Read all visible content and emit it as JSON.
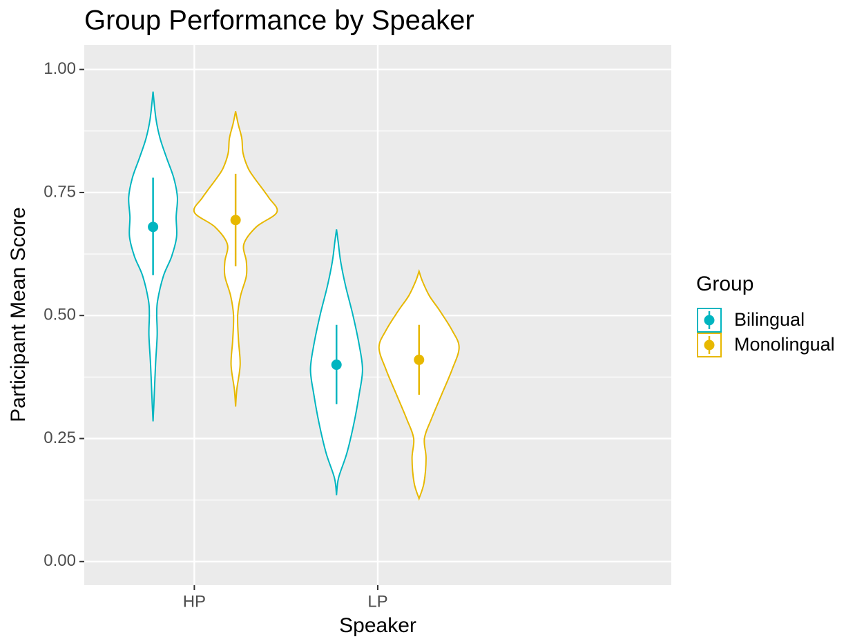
{
  "chart_data": {
    "type": "violin",
    "title": "Group Performance by Speaker",
    "x_label": "Speaker",
    "y_label": "Participant Mean Score",
    "legend_title": "Group",
    "legend_position": "right",
    "categories": [
      "HP",
      "LP"
    ],
    "ylim": [
      -0.048,
      1.05
    ],
    "yticks": [
      {
        "value": 0,
        "label": "0.00"
      },
      {
        "value": 0.25,
        "label": "0.25"
      },
      {
        "value": 0.5,
        "label": "0.50"
      },
      {
        "value": 0.75,
        "label": "0.75"
      },
      {
        "value": 1,
        "label": "1.00"
      }
    ],
    "yminorticks": [
      0.125,
      0.375,
      0.625,
      0.875
    ],
    "grid": true,
    "series": [
      {
        "name": "Bilingual",
        "color": "#00b5c0",
        "values": [
          0.68,
          0.4
        ],
        "lower": [
          0.582,
          0.32
        ],
        "upper": [
          0.78,
          0.481
        ],
        "violins": [
          {
            "y": [
              0.285,
              0.32,
              0.4,
              0.46,
              0.5,
              0.53,
              0.58,
              0.62,
              0.66,
              0.7,
              0.74,
              0.78,
              0.82,
              0.86,
              0.9,
              0.955
            ],
            "width": [
              0,
              0.02,
              0.06,
              0.1,
              0.09,
              0.11,
              0.25,
              0.45,
              0.57,
              0.56,
              0.59,
              0.5,
              0.33,
              0.17,
              0.07,
              0
            ]
          },
          {
            "y": [
              0.135,
              0.17,
              0.22,
              0.28,
              0.34,
              0.39,
              0.44,
              0.5,
              0.56,
              0.61,
              0.65,
              0.675
            ],
            "width": [
              0,
              0.05,
              0.25,
              0.42,
              0.55,
              0.63,
              0.55,
              0.4,
              0.22,
              0.1,
              0.04,
              0
            ]
          }
        ]
      },
      {
        "name": "Monolingual",
        "color": "#e7b800",
        "values": [
          0.694,
          0.41
        ],
        "lower": [
          0.6,
          0.339
        ],
        "upper": [
          0.788,
          0.481
        ],
        "violins": [
          {
            "y": [
              0.315,
              0.35,
              0.4,
              0.45,
              0.5,
              0.54,
              0.58,
              0.61,
              0.645,
              0.68,
              0.71,
              0.74,
              0.78,
              0.8,
              0.83,
              0.86,
              0.89,
              0.915
            ],
            "width": [
              0,
              0.03,
              0.11,
              0.07,
              0.05,
              0.12,
              0.26,
              0.26,
              0.2,
              0.5,
              1.0,
              0.8,
              0.45,
              0.3,
              0.18,
              0.15,
              0.06,
              0
            ]
          },
          {
            "y": [
              0.128,
              0.16,
              0.21,
              0.25,
              0.29,
              0.34,
              0.39,
              0.435,
              0.47,
              0.51,
              0.54,
              0.57,
              0.59
            ],
            "width": [
              0,
              0.12,
              0.17,
              0.13,
              0.3,
              0.55,
              0.8,
              0.97,
              0.8,
              0.5,
              0.25,
              0.08,
              0
            ]
          }
        ]
      }
    ]
  }
}
